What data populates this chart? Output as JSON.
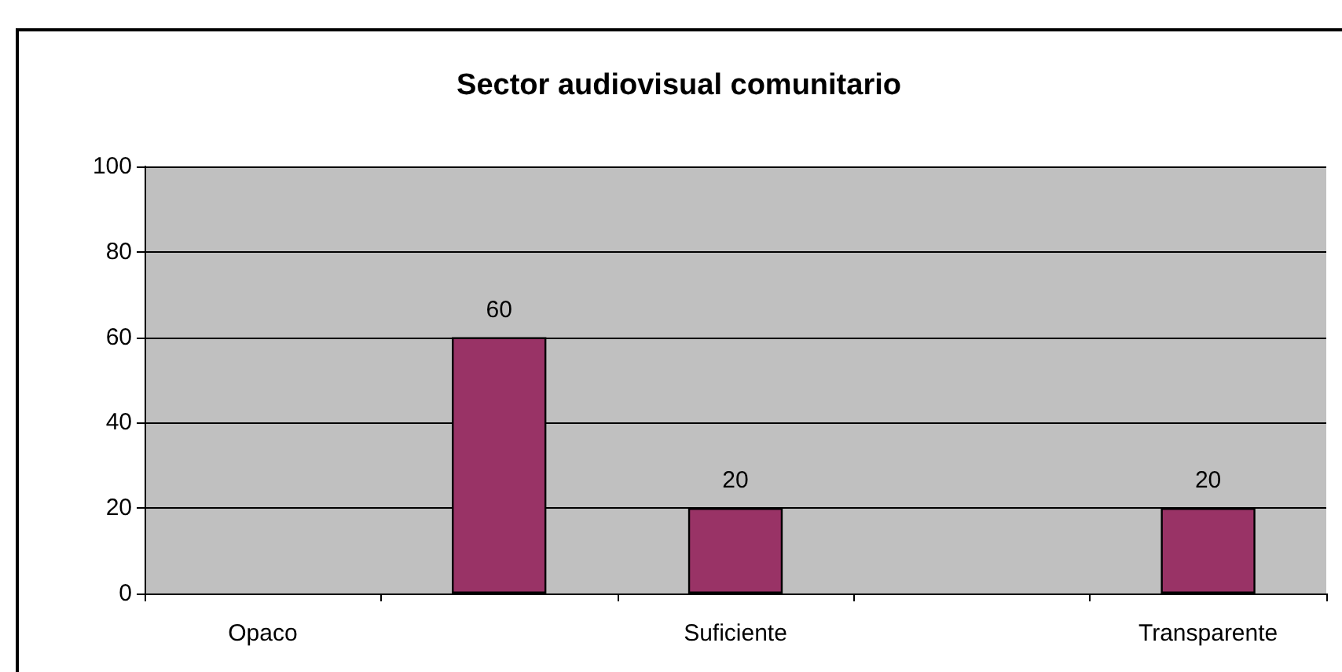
{
  "chart_data": {
    "type": "bar",
    "title": "Sector audiovisual comunitario",
    "categories": [
      "Opaco",
      null,
      "Suficiente",
      null,
      "Transparente"
    ],
    "values": [
      null,
      60,
      20,
      null,
      20
    ],
    "color": "#993366",
    "ylim": [
      0,
      100
    ],
    "yticks": [
      0,
      20,
      40,
      60,
      80,
      100
    ],
    "grid": "y",
    "data_labels": true
  }
}
